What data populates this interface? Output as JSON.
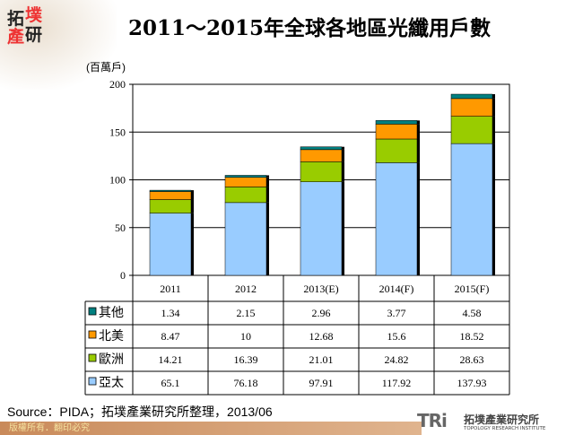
{
  "header": {
    "logo_text": "拓墣產研",
    "title": "2011～2015年全球各地區光纖用戶數"
  },
  "chart_data": {
    "type": "bar",
    "stacked": true,
    "title": "2011～2015年全球各地區光纖用戶數",
    "ylabel": "(百萬戶)",
    "ylim": [
      0,
      200
    ],
    "yticks": [
      0,
      50,
      100,
      150,
      200
    ],
    "grid": true,
    "categories": [
      "2011",
      "2012",
      "2013(E)",
      "2014(F)",
      "2015(F)"
    ],
    "series": [
      {
        "name": "亞太",
        "color": "#99ccff",
        "values": [
          65.1,
          76.18,
          97.91,
          117.92,
          137.93
        ]
      },
      {
        "name": "歐洲",
        "color": "#99cc00",
        "values": [
          14.21,
          16.39,
          21.01,
          24.82,
          28.63
        ]
      },
      {
        "name": "北美",
        "color": "#ff9900",
        "values": [
          8.47,
          10,
          12.68,
          15.6,
          18.52
        ]
      },
      {
        "name": "其他",
        "color": "#008080",
        "values": [
          1.34,
          2.15,
          2.96,
          3.77,
          4.58
        ]
      }
    ],
    "table_row_order": [
      "其他",
      "北美",
      "歐洲",
      "亞太"
    ]
  },
  "footer": {
    "source": "Source：PIDA；拓墣產業研究所整理，2013/06",
    "copyright": "版權所有．翻印必究",
    "tri_logo": "TRi",
    "tri_cn": "拓墣產業研究所",
    "tri_en": "TOPOLOGY RESEARCH INSTITUTE"
  }
}
